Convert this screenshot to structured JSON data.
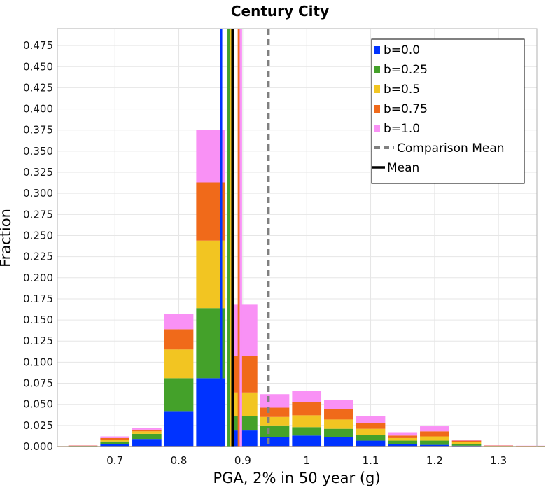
{
  "chart_data": {
    "type": "bar",
    "title": "Century City",
    "xlabel": "PGA, 2% in 50 year (g)",
    "ylabel": "Fraction",
    "xlim": [
      0.61,
      1.36
    ],
    "ylim": [
      0,
      0.495
    ],
    "bin_width": 0.05,
    "x_ticks": [
      "0.7",
      "0.8",
      "0.9",
      "1",
      "1.1",
      "1.2",
      "1.3"
    ],
    "x_tick_values": [
      0.7,
      0.8,
      0.9,
      1.0,
      1.1,
      1.2,
      1.3
    ],
    "y_ticks": [
      "0.000",
      "0.025",
      "0.050",
      "0.075",
      "0.100",
      "0.125",
      "0.150",
      "0.175",
      "0.200",
      "0.225",
      "0.250",
      "0.275",
      "0.300",
      "0.325",
      "0.350",
      "0.375",
      "0.400",
      "0.425",
      "0.450",
      "0.475"
    ],
    "grid": true,
    "legend_position": "top-right",
    "bin_centers": [
      0.65,
      0.7,
      0.75,
      0.8,
      0.85,
      0.9,
      0.95,
      1.0,
      1.05,
      1.1,
      1.15,
      1.2,
      1.25,
      1.3,
      1.35
    ],
    "series": [
      {
        "name": "b=0.0",
        "color": "#0033ff",
        "values": [
          0.0005,
          0.003,
          0.009,
          0.042,
          0.081,
          0.019,
          0.011,
          0.013,
          0.011,
          0.007,
          0.003,
          0.002,
          0.001,
          0.0003,
          0.0002
        ]
      },
      {
        "name": "b=0.25",
        "color": "#44a12a",
        "values": [
          0.0003,
          0.003,
          0.006,
          0.039,
          0.083,
          0.017,
          0.014,
          0.01,
          0.01,
          0.007,
          0.004,
          0.005,
          0.002,
          0.0003,
          0.0002
        ]
      },
      {
        "name": "b=0.5",
        "color": "#f2c522",
        "values": [
          0.0002,
          0.002,
          0.003,
          0.034,
          0.08,
          0.028,
          0.01,
          0.014,
          0.011,
          0.007,
          0.003,
          0.005,
          0.002,
          0.0003,
          0.0002
        ]
      },
      {
        "name": "b=0.75",
        "color": "#f06a1a",
        "values": [
          0.0002,
          0.002,
          0.002,
          0.024,
          0.069,
          0.043,
          0.011,
          0.016,
          0.012,
          0.007,
          0.003,
          0.006,
          0.002,
          0.0003,
          0.0002
        ]
      },
      {
        "name": "b=1.0",
        "color": "#f991f5",
        "values": [
          0.0003,
          0.002,
          0.002,
          0.018,
          0.062,
          0.061,
          0.016,
          0.013,
          0.011,
          0.008,
          0.004,
          0.006,
          0.001,
          0.0003,
          0.0002
        ]
      }
    ],
    "vertical_lines": [
      {
        "name": "b=0.0",
        "x": 0.866,
        "color": "#0033ff",
        "style": "solid"
      },
      {
        "name": "b=0.25",
        "x": 0.878,
        "color": "#44a12a",
        "style": "solid"
      },
      {
        "name": "b=0.5",
        "x": 0.882,
        "color": "#f2c522",
        "style": "solid"
      },
      {
        "name": "b=0.75",
        "x": 0.894,
        "color": "#f06a1a",
        "style": "solid"
      },
      {
        "name": "b=1.0",
        "x": 0.897,
        "color": "#f991f5",
        "style": "solid"
      },
      {
        "name": "Comparison Mean",
        "x": 0.94,
        "color": "#808080",
        "style": "dashed"
      },
      {
        "name": "Mean",
        "x": 0.884,
        "color": "#000000",
        "style": "solid"
      }
    ],
    "legend": [
      {
        "label": "b=0.0",
        "kind": "box",
        "color": "#0033ff"
      },
      {
        "label": "b=0.25",
        "kind": "box",
        "color": "#44a12a"
      },
      {
        "label": "b=0.5",
        "kind": "box",
        "color": "#f2c522"
      },
      {
        "label": "b=0.75",
        "kind": "box",
        "color": "#f06a1a"
      },
      {
        "label": "b=1.0",
        "kind": "box",
        "color": "#f991f5"
      },
      {
        "label": "Comparison Mean",
        "kind": "dashed",
        "color": "#808080"
      },
      {
        "label": "Mean",
        "kind": "line",
        "color": "#000000"
      }
    ]
  }
}
